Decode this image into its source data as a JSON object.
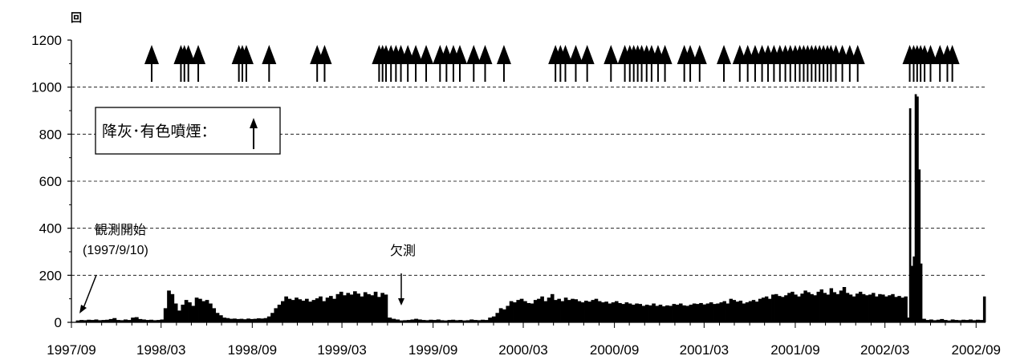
{
  "chart_data": {
    "type": "bar",
    "ylabel": "回",
    "ylim": [
      0,
      1200
    ],
    "yticks": [
      "0",
      "200",
      "400",
      "600",
      "800",
      "1000",
      "1200"
    ],
    "x_range": [
      "1997-09-01",
      "2002-09-20"
    ],
    "xtick_labels": [
      "1997/09",
      "1998/03",
      "1998/09",
      "1999/03",
      "1999/09",
      "2000/03",
      "2000/09",
      "2001/03",
      "2001/09",
      "2002/03",
      "2002/09"
    ],
    "grid": "horizontal dashed at 200 intervals",
    "legend": {
      "text": "降灰･有色噴煙：",
      "placement": "upper-left",
      "symbol": "arrow-up"
    },
    "annotations": [
      {
        "text": "観測開始",
        "x": "1997-09-10"
      },
      {
        "text": "(1997/9/10)",
        "x": "1997-09-10"
      },
      {
        "text": "欠測",
        "x": "1999-06-25"
      }
    ],
    "series": [
      {
        "color": "#000000",
        "segments": [
          {
            "from": "1997-09-10",
            "to": "1998-02-20",
            "values": [
              8,
              10,
              9,
              11,
              10,
              12,
              9,
              10,
              11,
              14,
              18,
              10,
              9,
              12,
              10,
              20,
              22,
              14,
              12,
              10,
              11,
              9
            ]
          },
          {
            "from": "1998-02-20",
            "to": "1998-07-10",
            "values": [
              10,
              12,
              60,
              135,
              120,
              80,
              50,
              75,
              95,
              85,
              70,
              105,
              100,
              90,
              95,
              80,
              60,
              40,
              30,
              20
            ]
          },
          {
            "from": "1998-07-10",
            "to": "1998-10-01",
            "values": [
              18,
              15,
              16,
              14,
              15,
              13,
              16,
              14,
              15,
              17,
              16,
              18
            ]
          },
          {
            "from": "1998-10-01",
            "to": "1999-06-01",
            "values": [
              25,
              40,
              60,
              75,
              90,
              110,
              100,
              95,
              105,
              98,
              92,
              100,
              88,
              95,
              102,
              110,
              90,
              105,
              112,
              100,
              120,
              130,
              115,
              125,
              118,
              132,
              122,
              110,
              128,
              120,
              115,
              130,
              108,
              125,
              118
            ]
          },
          {
            "from": "1999-06-01",
            "to": "1999-06-25",
            "values": [
              20,
              15,
              12
            ]
          },
          {
            "from": "1999-06-25",
            "to": "2000-01-05",
            "values": [
              8,
              9,
              10,
              12,
              15,
              12,
              10,
              9,
              11,
              10,
              12,
              9,
              8,
              10,
              11,
              9,
              10,
              8,
              9,
              12,
              10,
              9,
              11,
              10,
              20,
              25
            ]
          },
          {
            "from": "2000-01-05",
            "to": "2000-03-15",
            "values": [
              40,
              60,
              55,
              70,
              90,
              85,
              95,
              100,
              90,
              82
            ]
          },
          {
            "from": "2000-03-15",
            "to": "2001-04-01",
            "values": [
              80,
              95,
              100,
              110,
              90,
              105,
              120,
              95,
              100,
              90,
              105,
              95,
              100,
              98,
              90,
              85,
              92,
              88,
              95,
              100,
              90,
              85,
              88,
              80,
              85,
              90,
              82,
              78,
              85,
              80,
              75,
              80,
              78,
              70,
              75,
              72,
              80,
              70,
              75,
              68,
              72,
              70,
              78,
              75,
              80,
              72,
              70,
              75,
              80,
              78,
              82,
              76,
              80,
              85,
              78,
              80
            ]
          },
          {
            "from": "2001-04-01",
            "to": "2002-04-15",
            "values": [
              85,
              90,
              80,
              100,
              95,
              88,
              92,
              80,
              85,
              90,
              95,
              88,
              100,
              105,
              110,
              100,
              118,
              120,
              112,
              108,
              115,
              125,
              130,
              118,
              110,
              122,
              135,
              128,
              120,
              115,
              130,
              140,
              125,
              118,
              145,
              128,
              120,
              135,
              150,
              125,
              118,
              110,
              122,
              130,
              120,
              115,
              118,
              125,
              110,
              120,
              118,
              110,
              115,
              120,
              108,
              112,
              105,
              110
            ]
          },
          {
            "from": "2002-04-15",
            "to": "2002-05-15",
            "values": [
              20,
              910,
              240,
              280,
              970,
              960,
              650,
              250
            ]
          },
          {
            "from": "2002-05-15",
            "to": "2002-09-15",
            "values": [
              15,
              10,
              12,
              9,
              11,
              14,
              10,
              8,
              12,
              10,
              9,
              11,
              10,
              12,
              9,
              11,
              10
            ]
          },
          {
            "from": "2002-09-15",
            "to": "2002-09-20",
            "values": [
              110
            ]
          }
        ]
      }
    ],
    "ash_events": [
      "1998-02-10",
      "1998-04-10",
      "1998-04-17",
      "1998-04-25",
      "1998-05-15",
      "1998-08-05",
      "1998-08-12",
      "1998-08-20",
      "1998-10-05",
      "1999-01-10",
      "1999-01-25",
      "1999-05-15",
      "1999-05-22",
      "1999-05-29",
      "1999-06-08",
      "1999-06-18",
      "1999-06-28",
      "1999-07-12",
      "1999-07-28",
      "1999-08-18",
      "1999-09-15",
      "1999-09-28",
      "1999-10-12",
      "1999-10-25",
      "1999-11-22",
      "1999-12-15",
      "2000-01-22",
      "2000-05-05",
      "2000-05-15",
      "2000-05-25",
      "2000-06-15",
      "2000-07-08",
      "2000-08-25",
      "2000-09-22",
      "2000-10-02",
      "2000-10-10",
      "2000-10-18",
      "2000-10-26",
      "2000-11-05",
      "2000-11-15",
      "2000-11-28",
      "2000-12-12",
      "2001-01-20",
      "2001-02-01",
      "2001-02-20",
      "2001-04-10",
      "2001-05-12",
      "2001-05-28",
      "2001-06-12",
      "2001-06-26",
      "2001-07-08",
      "2001-07-20",
      "2001-08-01",
      "2001-08-12",
      "2001-08-22",
      "2001-09-01",
      "2001-09-10",
      "2001-09-18",
      "2001-09-26",
      "2001-10-04",
      "2001-10-12",
      "2001-10-20",
      "2001-10-28",
      "2001-11-05",
      "2001-11-12",
      "2001-11-22",
      "2001-12-05",
      "2001-12-20",
      "2002-01-05",
      "2002-04-20",
      "2002-04-28",
      "2002-05-05",
      "2002-05-12",
      "2002-05-20",
      "2002-06-01",
      "2002-06-20",
      "2002-07-05",
      "2002-07-15"
    ]
  }
}
